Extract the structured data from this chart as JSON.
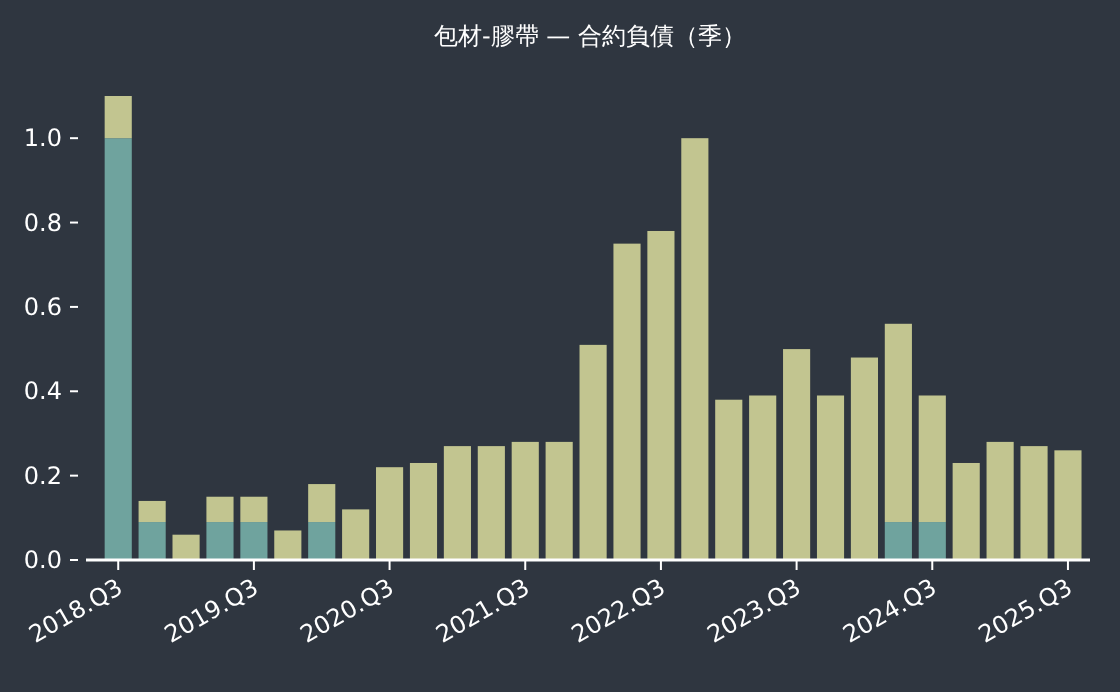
{
  "chart_data": {
    "type": "bar",
    "title": "包材-膠帶 — 合約負債（季）",
    "stacked": true,
    "categories": [
      "2018.Q3",
      null,
      null,
      null,
      "2019.Q3",
      null,
      null,
      null,
      "2020.Q3",
      null,
      null,
      null,
      "2021.Q3",
      null,
      null,
      null,
      "2022.Q3",
      null,
      null,
      null,
      "2023.Q3",
      null,
      null,
      null,
      "2024.Q3",
      null,
      null,
      null,
      "2025.Q3"
    ],
    "series": [
      {
        "color": "#6fa39e",
        "values": [
          1.0,
          0.09,
          0,
          0.09,
          0.09,
          0,
          0.09,
          0,
          0,
          0,
          0,
          0,
          0,
          0,
          0,
          0,
          0,
          0,
          0,
          0,
          0,
          0,
          0,
          0.09,
          0.09,
          0,
          0,
          0,
          0
        ]
      },
      {
        "color": "#c2c590",
        "values": [
          0.1,
          0.05,
          0.06,
          0.06,
          0.06,
          0.07,
          0.09,
          0.12,
          0.22,
          0.23,
          0.27,
          0.27,
          0.28,
          0.28,
          0.51,
          0.75,
          0.78,
          1.0,
          0.38,
          0.39,
          0.5,
          0.39,
          0.48,
          0.47,
          0.3,
          0.23,
          0.28,
          0.27,
          0.26
        ]
      }
    ],
    "ylim": [
      0,
      1.1
    ],
    "yticks": [
      {
        "value": 0,
        "label": "0.0"
      },
      {
        "value": 0.2,
        "label": "0.2"
      },
      {
        "value": 0.4,
        "label": "0.4"
      },
      {
        "value": 0.6,
        "label": "0.6"
      },
      {
        "value": 0.8,
        "label": "0.8"
      },
      {
        "value": 1.0,
        "label": "1.0"
      }
    ]
  }
}
